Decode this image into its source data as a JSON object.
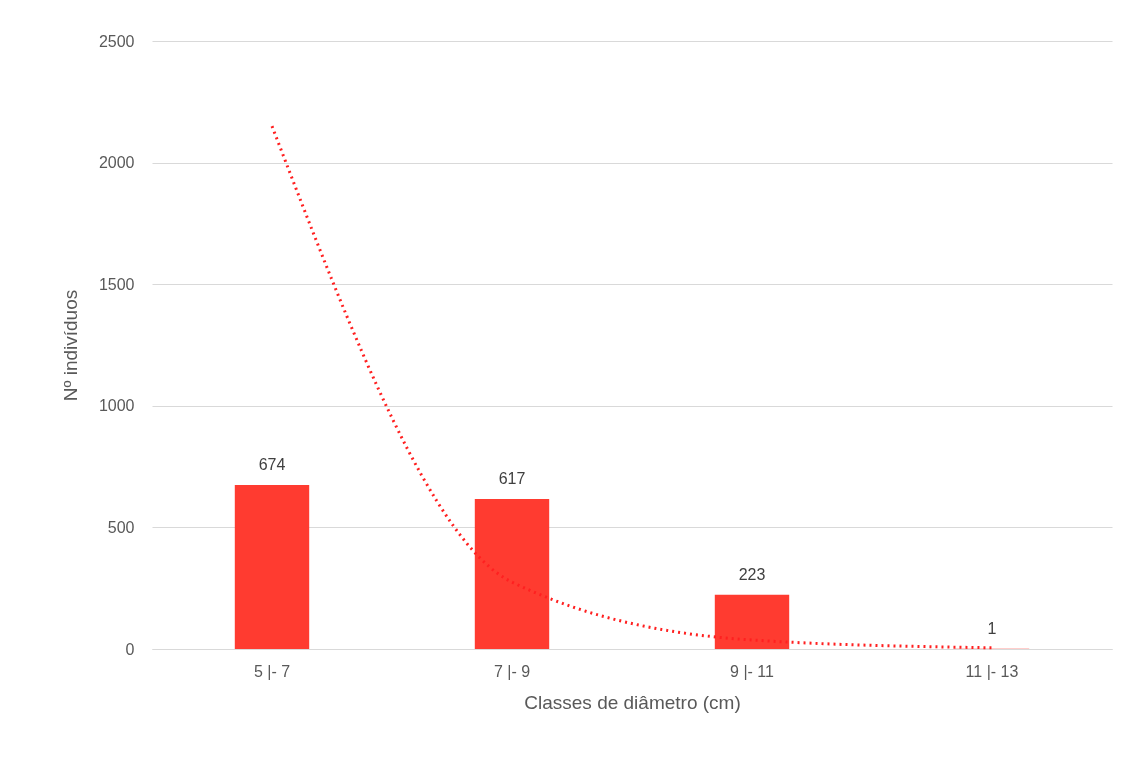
{
  "chart_data": {
    "type": "bar",
    "xlabel": "Classes de diâmetro (cm)",
    "ylabel": "Nº indivíduos",
    "categories": [
      "5 |- 7",
      "7 |- 9",
      "9 |- 11",
      "11 |- 13"
    ],
    "series": [
      {
        "color": "#ff3b30",
        "values": [
          674,
          617,
          223,
          1
        ],
        "value_labels": [
          "674",
          "617",
          "223",
          "1"
        ]
      },
      {
        "type": "line",
        "color": "#ff2020",
        "x": [
          "5 |- 7",
          "7 |- 9",
          "9 |- 11",
          "11 |- 13"
        ],
        "values": [
          2150,
          275,
          37,
          5
        ],
        "line_style": "dotted"
      }
    ],
    "ylim": [
      0,
      2500
    ],
    "yticks": [
      0,
      500,
      1000,
      1500,
      2000,
      2500
    ],
    "grid": "y"
  }
}
